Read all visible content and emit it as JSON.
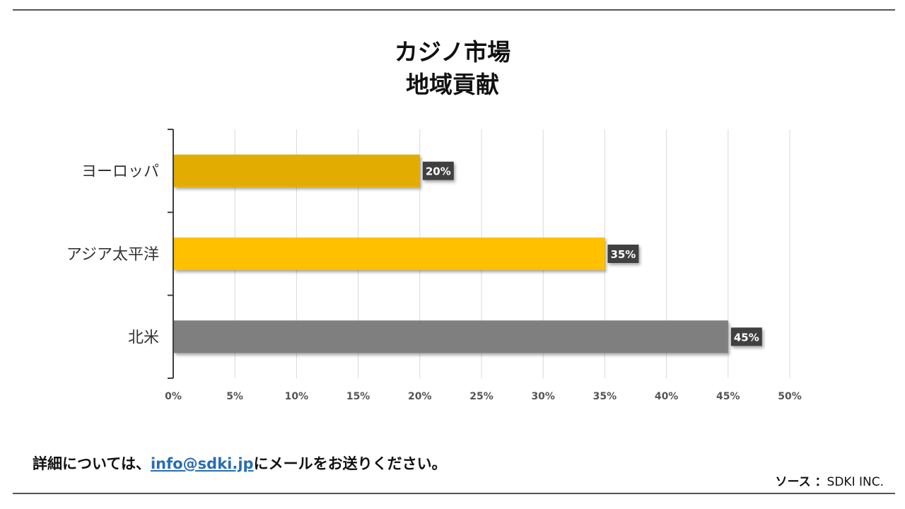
{
  "chart_data": {
    "type": "bar",
    "orientation": "horizontal",
    "title": [
      "カジノ市場",
      "地域貢献"
    ],
    "categories": [
      "ヨーロッパ",
      "アジア太平洋",
      "北米"
    ],
    "values": [
      20,
      35,
      45
    ],
    "data_labels": [
      "20%",
      "35%",
      "45%"
    ],
    "colors": [
      "#E2AC00",
      "#FFC000",
      "#7F7F7F"
    ],
    "xlim": [
      0,
      50
    ],
    "xticks": [
      0,
      5,
      10,
      15,
      20,
      25,
      30,
      35,
      40,
      45,
      50
    ],
    "xtick_labels": [
      "0%",
      "5%",
      "10%",
      "15%",
      "20%",
      "25%",
      "30%",
      "35%",
      "40%",
      "45%",
      "50%"
    ],
    "grid": true,
    "legend": "none"
  },
  "footer": {
    "note_prefix": "詳細については、",
    "email": "info@sdki.jp",
    "note_suffix": "にメールをお送りください。",
    "source_label": "ソース ：",
    "source_value": "SDKI INC."
  },
  "colors": {
    "label_bg": "#404040",
    "grid": "#d9d9d9",
    "axis": "#404040",
    "rule": "#555555",
    "link": "#2a6db0"
  }
}
